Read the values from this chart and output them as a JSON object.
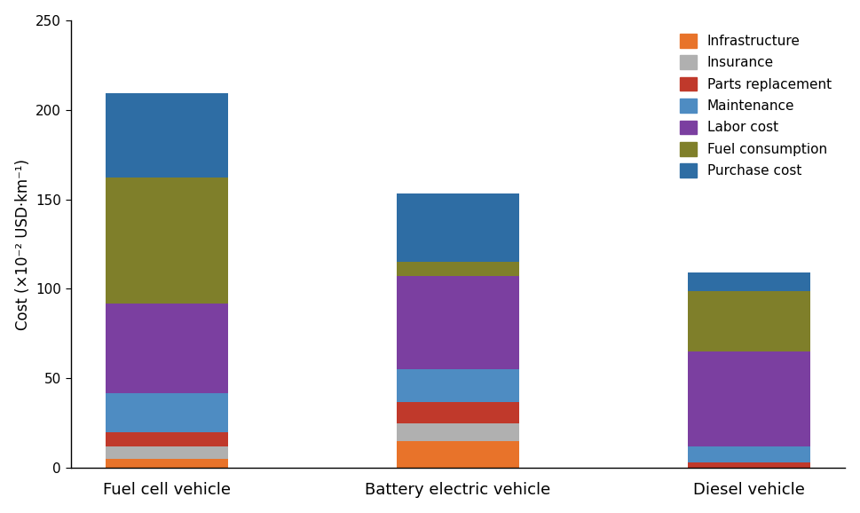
{
  "categories": [
    "Fuel cell vehicle",
    "Battery electric vehicle",
    "Diesel vehicle"
  ],
  "segments": [
    {
      "label": "Infrastructure",
      "color": "#e8732a",
      "values": [
        5,
        15,
        0
      ]
    },
    {
      "label": "Insurance",
      "color": "#b0b0b0",
      "values": [
        7,
        10,
        0
      ]
    },
    {
      "label": "Parts replacement",
      "color": "#c0392b",
      "values": [
        8,
        12,
        3
      ]
    },
    {
      "label": "Maintenance",
      "color": "#4e8cc2",
      "values": [
        22,
        18,
        9
      ]
    },
    {
      "label": "Labor cost",
      "color": "#7b3fa0",
      "values": [
        50,
        52,
        53
      ]
    },
    {
      "label": "Fuel consumption",
      "color": "#7f7f2a",
      "values": [
        70,
        8,
        34
      ]
    },
    {
      "label": "Purchase cost",
      "color": "#2e6da4",
      "values": [
        47,
        38,
        10
      ]
    }
  ],
  "ylabel": "Cost (×10⁻² USD·km⁻¹)",
  "ylim": [
    0,
    250
  ],
  "yticks": [
    0,
    50,
    100,
    150,
    200,
    250
  ],
  "bar_width": 0.42,
  "background_color": "#ffffff",
  "legend_order": [
    "Infrastructure",
    "Insurance",
    "Parts replacement",
    "Maintenance",
    "Labor cost",
    "Fuel consumption",
    "Purchase cost"
  ]
}
